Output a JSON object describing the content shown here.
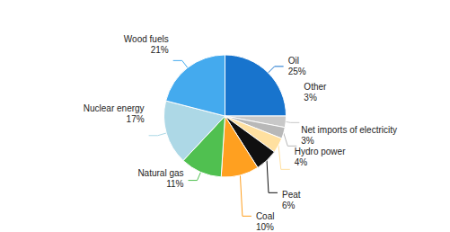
{
  "chart_data": {
    "type": "pie",
    "categories": [
      "Oil",
      "Other",
      "Net imports of electricity",
      "Hydro power",
      "Peat",
      "Coal",
      "Natural gas",
      "Nuclear energy",
      "Wood fuels"
    ],
    "values": [
      25,
      3,
      3,
      4,
      6,
      10,
      11,
      17,
      21
    ],
    "value_labels": [
      "25%",
      "3%",
      "3%",
      "4%",
      "6%",
      "10%",
      "11%",
      "17%",
      "21%"
    ],
    "colors": [
      "#1874CD",
      "#C8C8C8",
      "#B8B8B8",
      "#FFE0A0",
      "#101010",
      "#FFA020",
      "#50C050",
      "#ADD8E6",
      "#44AAEE"
    ],
    "data_labels": true
  }
}
